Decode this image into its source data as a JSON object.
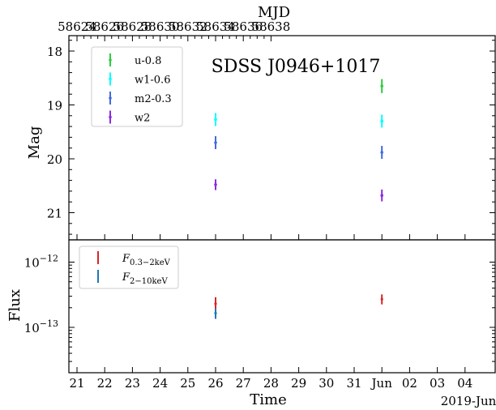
{
  "chart_data": [
    {
      "type": "scatter",
      "title": "SDSS J0946+1017",
      "ylabel": "Mag",
      "secondary_xlabel": "MJD",
      "secondary_x_ticks": [
        58624,
        58626,
        58628,
        58630,
        58632,
        58634,
        58636,
        58638
      ],
      "ylim": [
        21.45,
        17.8
      ],
      "y_inverted": true,
      "y_ticks": [
        18,
        19,
        20,
        21
      ],
      "legend_position": "upper-left",
      "series": [
        {
          "name": "u-0.8",
          "color": "#2ecc40",
          "x": [
            "2019-06-01"
          ],
          "y": [
            18.65
          ],
          "yerr": [
            0.13
          ]
        },
        {
          "name": "w1-0.6",
          "color": "#00ffff",
          "x": [
            "2019-05-26",
            "2019-06-01"
          ],
          "y": [
            19.27,
            19.3
          ],
          "yerr": [
            0.12,
            0.12
          ]
        },
        {
          "name": "m2-0.3",
          "color": "#4169e1",
          "x": [
            "2019-05-26",
            "2019-06-01"
          ],
          "y": [
            19.7,
            19.88
          ],
          "yerr": [
            0.12,
            0.12
          ]
        },
        {
          "name": "w2",
          "color": "#8a2be2",
          "x": [
            "2019-05-26",
            "2019-06-01"
          ],
          "y": [
            20.48,
            20.68
          ],
          "yerr": [
            0.1,
            0.11
          ]
        }
      ]
    },
    {
      "type": "scatter",
      "ylabel": "Flux",
      "xlabel": "Time",
      "y_scale": "log",
      "y_ticks": [
        "10^{-12}",
        "10^{-13}"
      ],
      "x_ticks": [
        "21",
        "22",
        "23",
        "24",
        "25",
        "26",
        "27",
        "28",
        "29",
        "30",
        "31",
        "Jun",
        "02",
        "03",
        "04"
      ],
      "x_offset_label": "2019-Jun",
      "legend_position": "upper-left",
      "series": [
        {
          "name": "F_{0.3-2keV}",
          "color": "#d62728",
          "x": [
            "2019-05-26",
            "2019-06-01"
          ],
          "y": [
            2.3e-13,
            2.7e-13
          ],
          "y_low": [
            1.75e-13,
            2.25e-13
          ],
          "y_high": [
            2.9e-13,
            3.2e-13
          ]
        },
        {
          "name": "F_{2-10keV}",
          "color": "#1f77b4",
          "x": [
            "2019-05-26"
          ],
          "y": [
            1.65e-13
          ],
          "y_low": [
            1.35e-13
          ],
          "y_high": [
            1.95e-13
          ]
        }
      ]
    }
  ]
}
